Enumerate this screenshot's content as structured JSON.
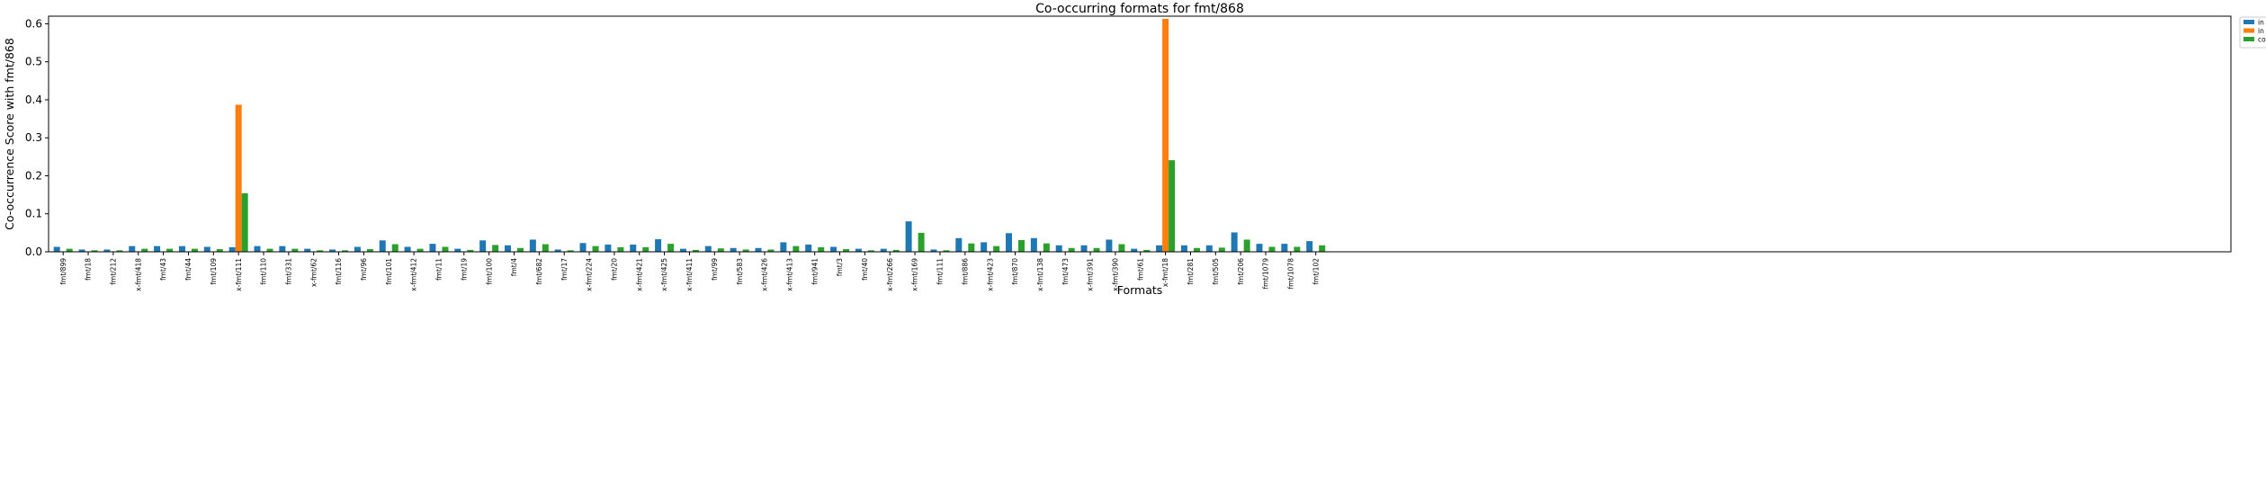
{
  "chart_data": {
    "type": "bar",
    "title": "Co-occurring formats for fmt/868",
    "xlabel": "Formats",
    "ylabel": "Co-occurrence Score with fmt/868",
    "ylim": [
      0,
      0.62
    ],
    "yticks": [
      "0.0",
      "0.1",
      "0.2",
      "0.3",
      "0.4",
      "0.5",
      "0.6"
    ],
    "legend_position": "upper-right-outside",
    "grid": false,
    "categories": [
      "fmt/899",
      "fmt/18",
      "fmt/212",
      "x-fmt/418",
      "fmt/43",
      "fmt/44",
      "fmt/109",
      "x-fmt/111",
      "fmt/110",
      "fmt/331",
      "x-fmt/62",
      "fmt/116",
      "fmt/96",
      "fmt/101",
      "x-fmt/412",
      "fmt/11",
      "fmt/19",
      "fmt/100",
      "fmt/4",
      "fmt/682",
      "fmt/17",
      "x-fmt/224",
      "fmt/20",
      "x-fmt/421",
      "x-fmt/425",
      "x-fmt/411",
      "fmt/99",
      "fmt/583",
      "x-fmt/426",
      "x-fmt/413",
      "fmt/941",
      "fmt/3",
      "fmt/40",
      "x-fmt/266",
      "x-fmt/169",
      "fmt/111",
      "fmt/886",
      "x-fmt/423",
      "fmt/870",
      "x-fmt/138",
      "fmt/473",
      "x-fmt/391",
      "x-fmt/390",
      "fmt/61",
      "x-fmt/18",
      "fmt/281",
      "fmt/505",
      "fmt/206",
      "fmt/1079",
      "fmt/1078",
      "fmt/102"
    ],
    "series": [
      {
        "name": "in data-objects",
        "color": "#1f77b4",
        "values": [
          0.013,
          0.006,
          0.006,
          0.015,
          0.015,
          0.015,
          0.013,
          0.012,
          0.015,
          0.015,
          0.008,
          0.006,
          0.013,
          0.03,
          0.013,
          0.021,
          0.008,
          0.03,
          0.017,
          0.032,
          0.006,
          0.023,
          0.019,
          0.019,
          0.033,
          0.008,
          0.015,
          0.01,
          0.01,
          0.025,
          0.019,
          0.013,
          0.008,
          0.008,
          0.08,
          0.006,
          0.036,
          0.025,
          0.049,
          0.036,
          0.017,
          0.017,
          0.032,
          0.008,
          0.017,
          0.017,
          0.017,
          0.051,
          0.021,
          0.021,
          0.028
        ]
      },
      {
        "name": "in directories",
        "color": "#ff7f0e",
        "values": [
          0,
          0,
          0,
          0,
          0,
          0,
          0,
          0.387,
          0,
          0,
          0,
          0,
          0,
          0,
          0,
          0,
          0,
          0,
          0,
          0,
          0,
          0,
          0,
          0,
          0,
          0,
          0,
          0,
          0,
          0,
          0,
          0,
          0,
          0,
          0,
          0,
          0,
          0,
          0,
          0,
          0,
          0,
          0,
          0,
          0.613,
          0,
          0,
          0,
          0,
          0,
          0
        ]
      },
      {
        "name": "combined",
        "color": "#2ca02c",
        "values": [
          0.008,
          0.004,
          0.004,
          0.008,
          0.008,
          0.008,
          0.007,
          0.154,
          0.008,
          0.008,
          0.004,
          0.004,
          0.007,
          0.02,
          0.008,
          0.013,
          0.005,
          0.018,
          0.01,
          0.02,
          0.004,
          0.015,
          0.012,
          0.012,
          0.021,
          0.005,
          0.009,
          0.006,
          0.006,
          0.015,
          0.012,
          0.007,
          0.004,
          0.005,
          0.05,
          0.004,
          0.022,
          0.015,
          0.031,
          0.022,
          0.01,
          0.01,
          0.02,
          0.005,
          0.241,
          0.01,
          0.011,
          0.032,
          0.013,
          0.013,
          0.017
        ]
      }
    ]
  }
}
